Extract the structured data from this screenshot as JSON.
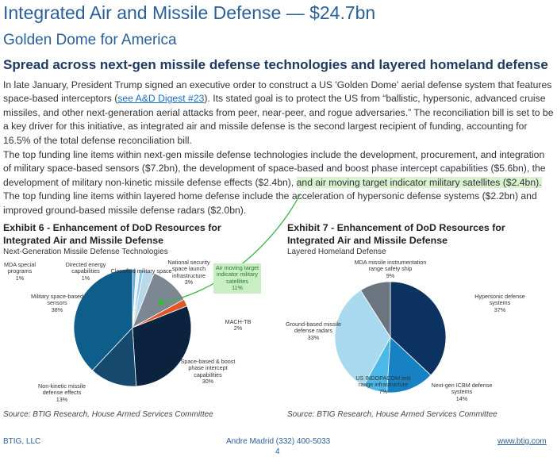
{
  "header": {
    "title": "Integrated Air and Missile Defense — $24.7bn",
    "subtitle": "Golden Dome for America"
  },
  "heading": "Spread across next-gen missile defense technologies and layered homeland defense",
  "paragraphs": [
    [
      "In late January, President Trump signed an executive order to construct a US 'Golden Dome' aerial defense system that features space-based interceptors (",
      "see A&D Digest #23",
      "). Its stated goal is to protect the US from “ballistic, hypersonic, advanced cruise missiles, and other next-generation aerial attacks from peer, near-peer, and rogue adversaries.” The reconciliation bill is set to be a key driver for this initiative, as integrated air and missile defense is the second largest recipient of funding, accounting for 16.5% of the total defense reconciliation bill."
    ],
    [
      "The top funding line items within next-gen missile defense technologies include the development, procurement, and integration of military space-based sensors ($7.2bn), the development of space-based and boost phase intercept capabilities ($5.6bn), the development of military non-kinetic missile defense effects ($2.4bn), ",
      "and air moving target indicator military satellites ($2.4bn).",
      " The top funding line items within layered home defense include the acceleration of hypersonic defense systems ($2.2bn) and improved ground-based missile defense radars ($2.0bn)."
    ]
  ],
  "chart_data": [
    {
      "type": "pie",
      "title": "Exhibit 6 - Enhancement of DoD Resources for Integrated Air and Missile Defense",
      "subtitle": "Next-Generation Missile Defense Technologies",
      "categories": [
        "MDA special programs",
        "Directed energy capabilities",
        "Classified military space",
        "National security space launch infrastructure",
        "Air moving target indicator military satellites",
        "MACH-TB",
        "Space-based & boost phase intercept capabilities",
        "Non-kinetic missile defense effects",
        "Military space-based sensors"
      ],
      "values": [
        1,
        1,
        1,
        3,
        11,
        2,
        30,
        13,
        38
      ],
      "value_labels": [
        "1%",
        "1%",
        null,
        "3%",
        "11%",
        "2%",
        "30%",
        "13%",
        "38%"
      ],
      "colors": [
        "#5aa9d6",
        "#e8f2f8",
        "#8ccbe8",
        "#b9d9ea",
        "#7d8791",
        "#e0582a",
        "#0c2340",
        "#154a6e",
        "#0d5e8a"
      ],
      "source": "Source: BTIG Research, House Armed Services Committee"
    },
    {
      "type": "pie",
      "title": "Exhibit 7 - Enhancement of DoD Resources for Integrated Air and Missile Defense",
      "subtitle": "Layered Homeland Defense",
      "categories": [
        "Hypersonic defense systems",
        "Next-gen ICBM defense systems",
        "US INDOPACOM test range infrastructure",
        "Ground-based missile defense radars",
        "MDA missile instrumentation range safety ship"
      ],
      "values": [
        37,
        14,
        7,
        33,
        9
      ],
      "value_labels": [
        "37%",
        "14%",
        "7%",
        "33%",
        "9%"
      ],
      "colors": [
        "#0c3262",
        "#1682c4",
        "#4bb8e8",
        "#a9d9ef",
        "#6b7580"
      ],
      "source": "Source: BTIG Research, House Armed Services Committee"
    }
  ],
  "footer": {
    "left": "BTIG, LLC",
    "middle": "Andre Madrid (332) 400-5033",
    "page": "4",
    "right": "www.btig.com"
  }
}
